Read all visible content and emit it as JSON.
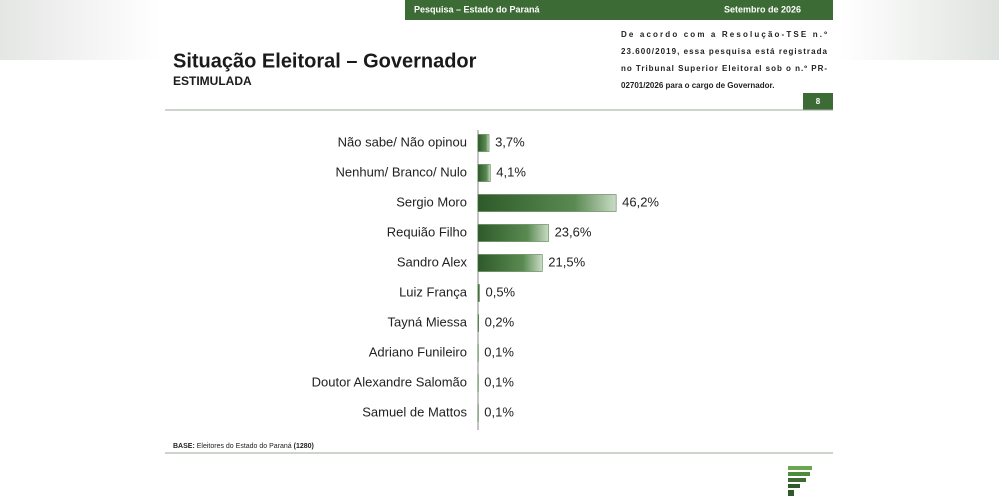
{
  "header": {
    "survey": "Pesquisa – Estado do Paraná",
    "date": "Setembro de 2026",
    "note": [
      "De acordo com a Resolução-TSE n.º",
      "23.600/2019, essa pesquisa está registrada",
      "no Tribunal Superior Eleitoral sob o n.º PR-",
      "02701/2026 para o cargo de Governador."
    ],
    "page": "8"
  },
  "chart_data": {
    "type": "bar",
    "orientation": "horizontal",
    "title": "Situação Eleitoral – Governador",
    "subtitle": "ESTIMULADA",
    "categories": [
      "Não sabe/ Não opinou",
      "Nenhum/ Branco/ Nulo",
      "Sergio Moro",
      "Requião Filho",
      "Sandro Alex",
      "Luiz França",
      "Tayná Miessa",
      "Adriano Funileiro",
      "Doutor Alexandre Salomão",
      "Samuel de Mattos"
    ],
    "values": [
      3.7,
      4.1,
      46.2,
      23.6,
      21.5,
      0.5,
      0.2,
      0.1,
      0.1,
      0.1
    ],
    "value_labels": [
      "3,7%",
      "4,1%",
      "46,2%",
      "23,6%",
      "21,5%",
      "0,5%",
      "0,2%",
      "0,1%",
      "0,1%",
      "0,1%"
    ],
    "color": "#3d6b35"
  },
  "footer": {
    "base_label": "BASE:",
    "base_text": "Eleitores do Estado do Paraná",
    "base_count": "(1280)"
  }
}
